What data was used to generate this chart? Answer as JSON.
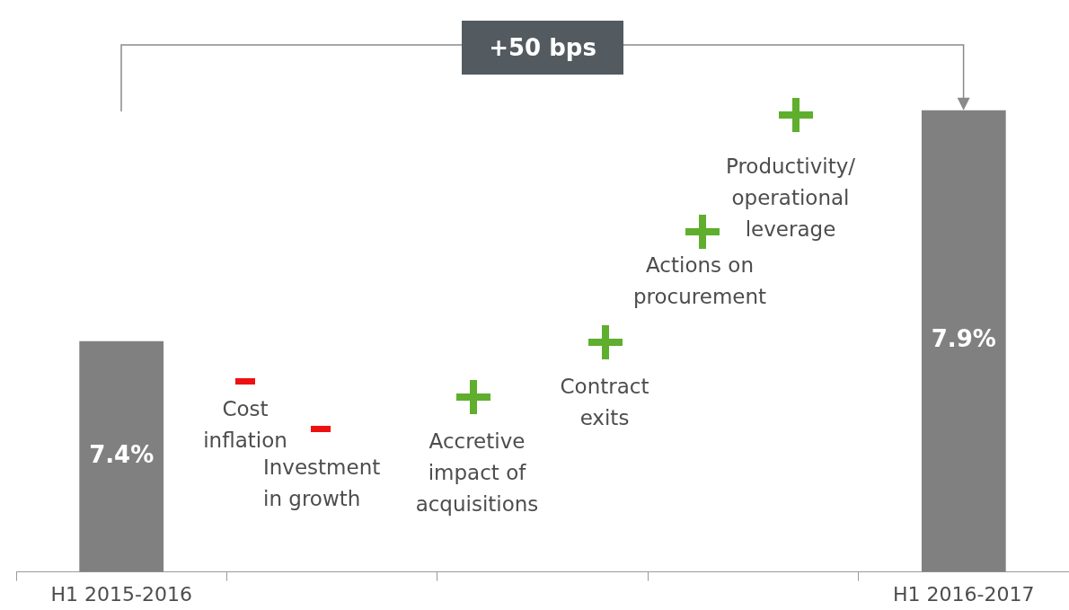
{
  "chart_data": {
    "type": "bar",
    "categories": [
      "H1 2015-2016",
      null,
      null,
      null,
      "H1 2016-2017"
    ],
    "values": [
      7.4,
      null,
      null,
      null,
      7.9
    ],
    "value_labels": [
      "7.4%",
      null,
      null,
      null,
      "7.9%"
    ],
    "color": "#808080",
    "ylim": [
      6.9,
      8.1
    ],
    "tick_labels": "x",
    "grid": false,
    "legend": false,
    "annotations": [
      "+50 bps",
      "Cost\ninflation",
      "Investment\nin growth",
      "Accretive\nimpact of\nacquisitions",
      "Contract\nexits",
      "Actions on\nprocurement",
      "Productivity/\noperational\nleverage"
    ]
  }
}
